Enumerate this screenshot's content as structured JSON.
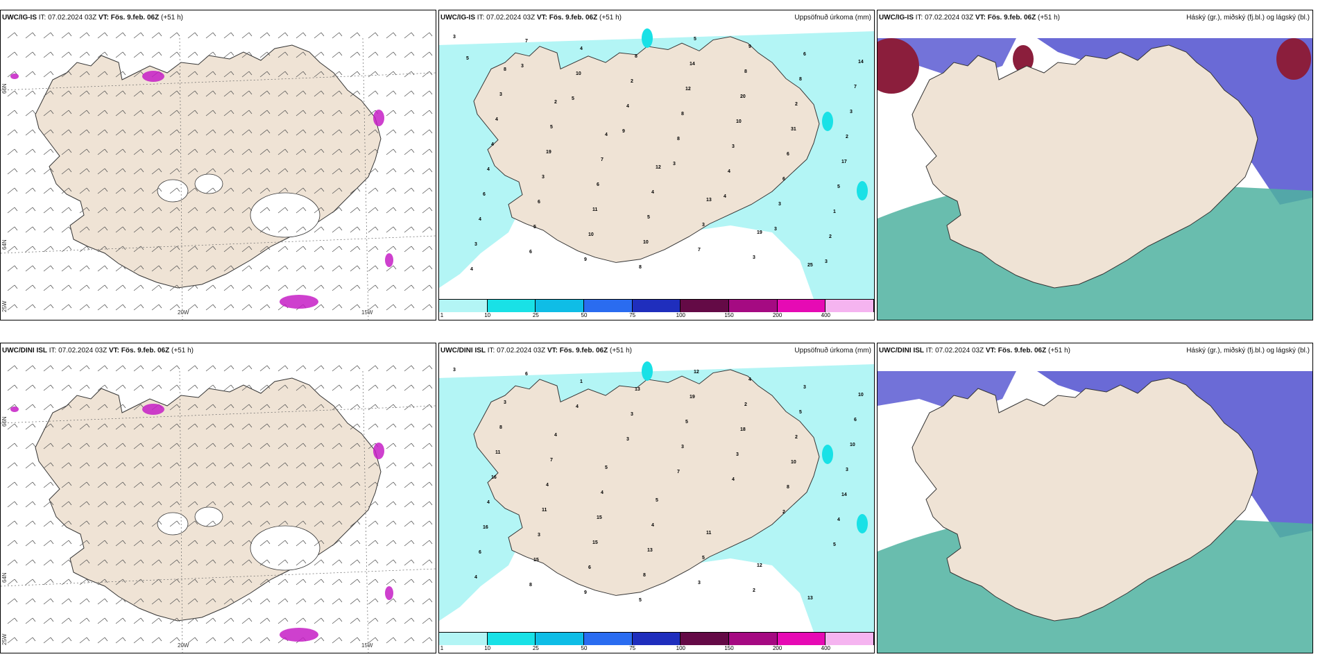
{
  "colors": {
    "land": "#efe3d5",
    "coast": "#333333",
    "precip_light": "#b3f5f5",
    "precip_mid": "#19e1e6",
    "high_cloud": "#5a5ad2",
    "mid_cloud": "#4fb1a0",
    "low_cloud": "#8b1e3c",
    "purple_precip": "#c51ec5"
  },
  "panels": [
    {
      "model": "UWC/IG-IS",
      "it": "IT: 07.02.2024 03Z",
      "vt": "VT: Fös. 9.feb. 06Z",
      "lead": "(+51 h)",
      "title_right": "",
      "type": "wind"
    },
    {
      "model": "UWC/IG-IS",
      "it": "IT: 07.02.2024 03Z",
      "vt": "VT: Fös. 9.feb. 06Z",
      "lead": "(+51 h)",
      "title_right": "Uppsöfnuð úrkoma (mm)",
      "type": "precip"
    },
    {
      "model": "UWC/IG-IS",
      "it": "IT: 07.02.2024 03Z",
      "vt": "VT: Fös. 9.feb. 06Z",
      "lead": "(+51 h)",
      "title_right": "Háský (gr.), miðský (fj.bl.) og lágský (bl.)",
      "type": "cloud"
    },
    {
      "model": "UWC/DINI ISL",
      "it": "IT: 07.02.2024 03Z",
      "vt": "VT: Fös. 9.feb. 06Z",
      "lead": "(+51 h)",
      "title_right": "",
      "type": "wind"
    },
    {
      "model": "UWC/DINI ISL",
      "it": "IT: 07.02.2024 03Z",
      "vt": "VT: Fös. 9.feb. 06Z",
      "lead": "(+51 h)",
      "title_right": "Uppsöfnuð úrkoma (mm)",
      "type": "precip"
    },
    {
      "model": "UWC/DINI ISL",
      "it": "IT: 07.02.2024 03Z",
      "vt": "VT: Fös. 9.feb. 06Z",
      "lead": "(+51 h)",
      "title_right": "Háský (gr.), miðský (fj.bl.) og lágský (bl.)",
      "type": "cloud"
    }
  ],
  "axis_labels": {
    "lon": [
      "20W",
      "15W"
    ],
    "lat": [
      "66N",
      "64N"
    ],
    "corner": "25W"
  },
  "precip_legend": {
    "ticks": [
      "1",
      "10",
      "25",
      "50",
      "75",
      "100",
      "150",
      "200",
      "400"
    ],
    "colors": [
      "#b3f5f5",
      "#19e1e6",
      "#0fbde6",
      "#2a6cf0",
      "#1f2ebd",
      "#640a46",
      "#a50a82",
      "#e60ab4",
      "#f5b4f0"
    ]
  },
  "precip_numbers_top": [
    "3",
    "8",
    "2",
    "4",
    "12",
    "13",
    "19",
    "25",
    "14",
    "3",
    "5",
    "7",
    "4",
    "3",
    "3",
    "6",
    "7",
    "4",
    "19",
    "6",
    "5",
    "7",
    "9",
    "8",
    "3",
    "4",
    "3",
    "11",
    "10",
    "5",
    "8",
    "2",
    "2",
    "4",
    "6",
    "10",
    "8",
    "14",
    "20",
    "31",
    "17",
    "6",
    "5",
    "9",
    "8",
    "12",
    "10",
    "6",
    "5",
    "4",
    "6",
    "4",
    "2",
    "8",
    "3",
    "6",
    "1",
    "3",
    "7",
    "10",
    "4",
    "8",
    "4",
    "3",
    "2",
    "4",
    "3",
    "5",
    "9",
    "3",
    "4",
    "3",
    "3",
    "5"
  ],
  "precip_numbers_bottom": [
    "3",
    "3",
    "4",
    "5",
    "5",
    "11",
    "12",
    "13",
    "10",
    "8",
    "7",
    "4",
    "4",
    "5",
    "2",
    "3",
    "6",
    "11",
    "4",
    "15",
    "13",
    "3",
    "4",
    "5",
    "10",
    "16",
    "11",
    "15",
    "8",
    "12",
    "2",
    "2",
    "3",
    "4",
    "3",
    "6",
    "5",
    "19",
    "18",
    "10",
    "14",
    "16",
    "15",
    "9",
    "13",
    "5",
    "3",
    "8",
    "4",
    "6",
    "8",
    "1",
    "3",
    "3",
    "4",
    "2",
    "5",
    "4",
    "6",
    "4",
    "3",
    "7"
  ]
}
